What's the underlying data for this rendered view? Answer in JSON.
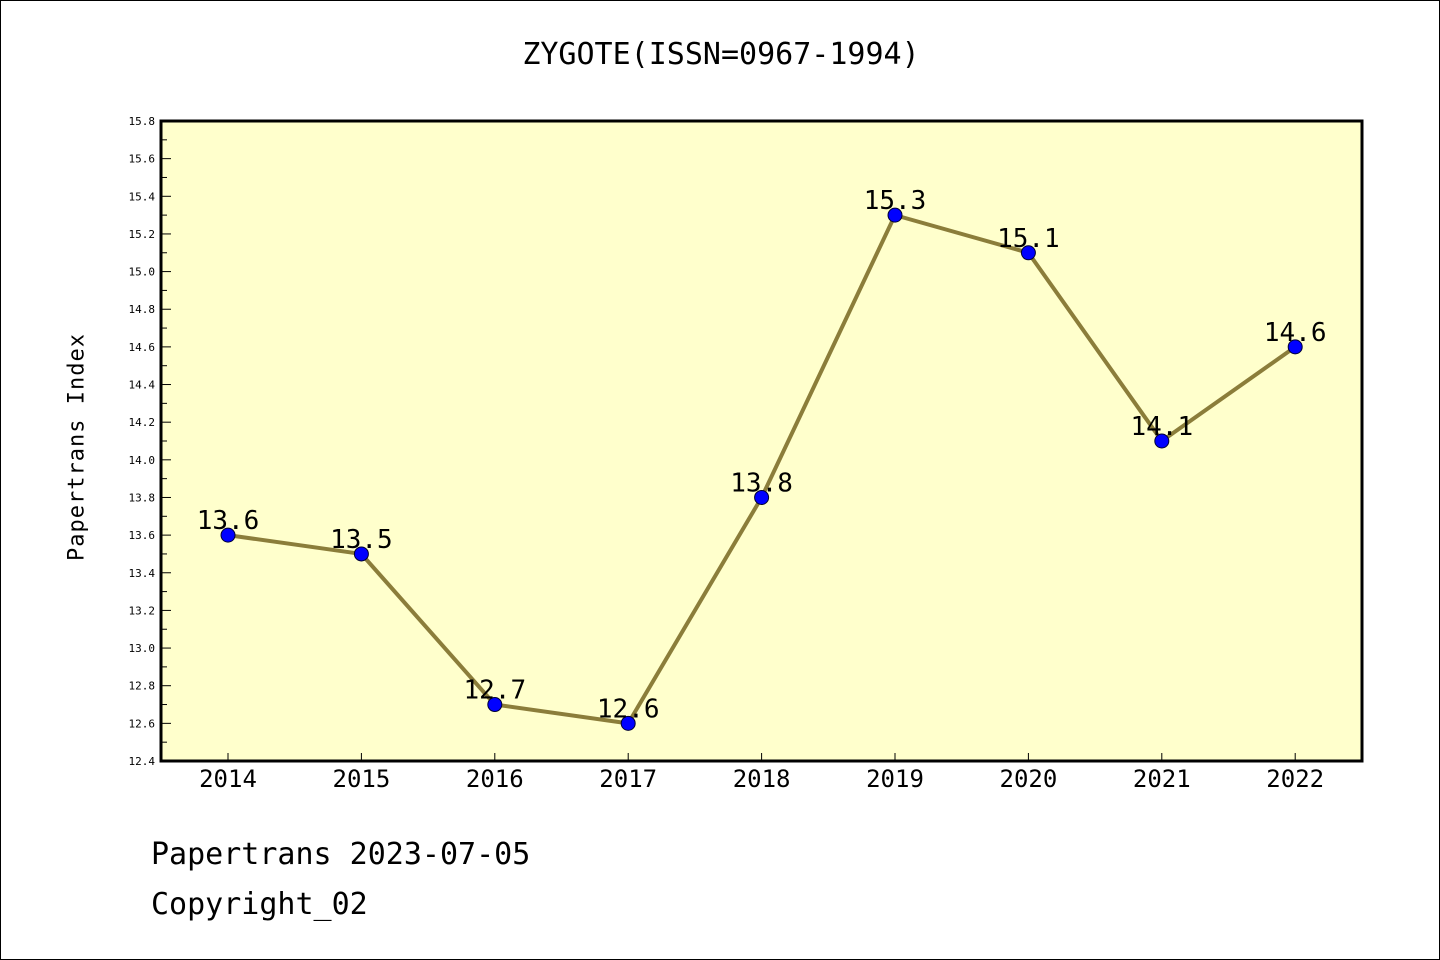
{
  "chart": {
    "title": "ZYGOTE(ISSN=0967-1994)",
    "ylabel": "Papertrans Index"
  },
  "footer": {
    "line1": "Papertrans 2023-07-05",
    "line2": "Copyright_02"
  },
  "colors": {
    "plot_background": "#ffffcc",
    "line": "#8b7d3a",
    "marker": "#0000ff"
  },
  "chart_data": {
    "type": "line",
    "title": "ZYGOTE(ISSN=0967-1994)",
    "xlabel": "",
    "ylabel": "Papertrans Index",
    "categories": [
      "2014",
      "2015",
      "2016",
      "2017",
      "2018",
      "2019",
      "2020",
      "2021",
      "2022"
    ],
    "values": [
      13.6,
      13.5,
      12.7,
      12.6,
      13.8,
      15.3,
      15.1,
      14.1,
      14.6
    ],
    "data_labels": [
      "13.6",
      "13.5",
      "12.7",
      "12.6",
      "13.8",
      "15.3",
      "15.1",
      "14.1",
      "14.6"
    ],
    "ylim": [
      12.4,
      15.8
    ],
    "yticks": [
      "12.4",
      "12.6",
      "12.8",
      "13.0",
      "13.2",
      "13.4",
      "13.6",
      "13.8",
      "14.0",
      "14.2",
      "14.4",
      "14.6",
      "14.8",
      "15.0",
      "15.2",
      "15.4",
      "15.6",
      "15.8"
    ],
    "grid": false,
    "legend": "none"
  }
}
